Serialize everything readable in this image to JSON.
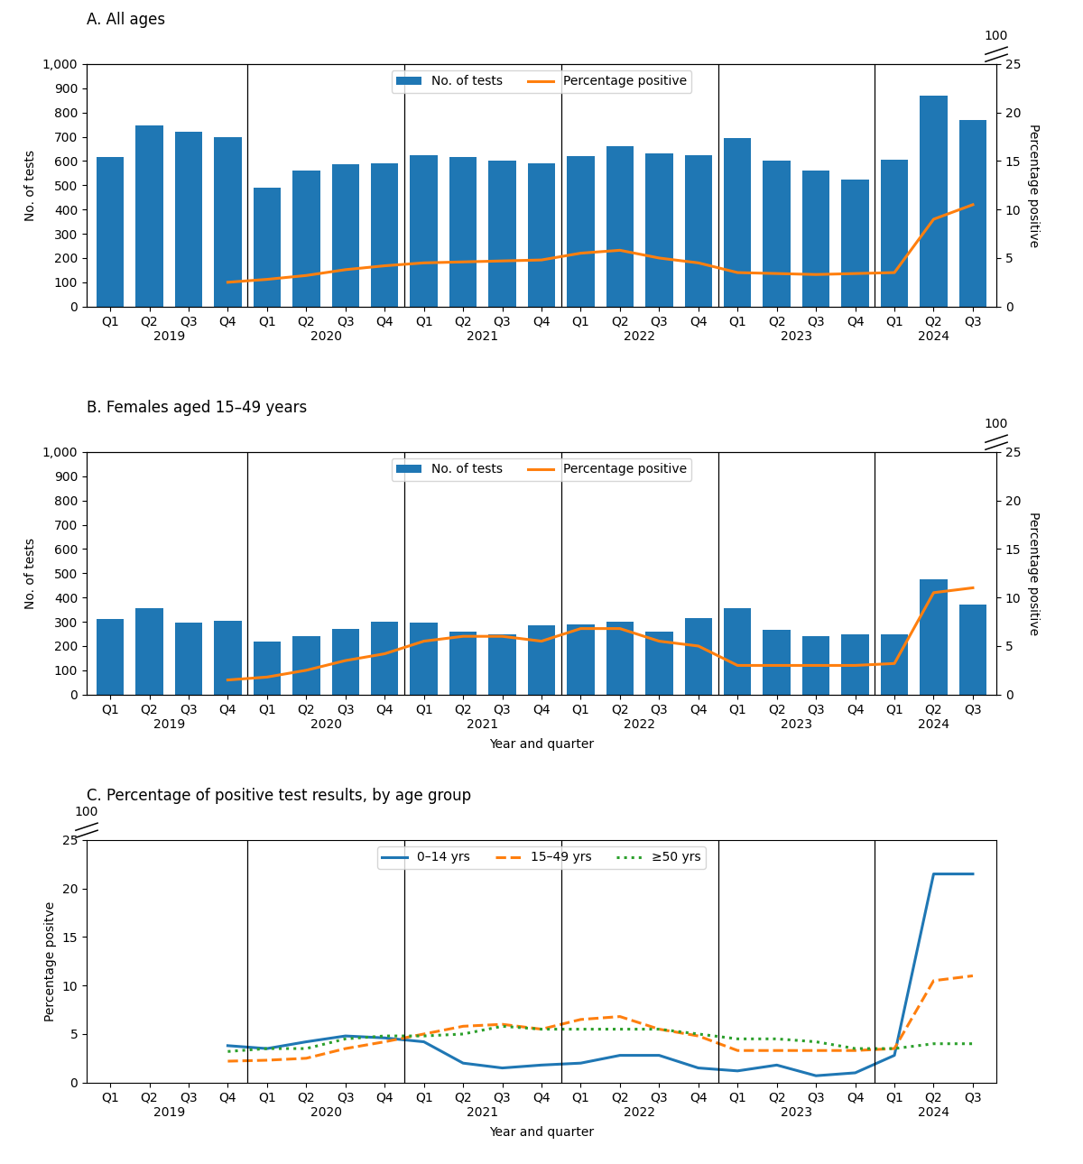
{
  "chart_data": [
    {
      "type": "bar",
      "title": "A. All ages",
      "categories": [
        "Q1",
        "Q2",
        "Q3",
        "Q4",
        "Q1",
        "Q2",
        "Q3",
        "Q4",
        "Q1",
        "Q2",
        "Q3",
        "Q4",
        "Q1",
        "Q2",
        "Q3",
        "Q4",
        "Q1",
        "Q2",
        "Q3",
        "Q4",
        "Q1",
        "Q2",
        "Q3"
      ],
      "category_groups": [
        {
          "label": "2019",
          "count": 4
        },
        {
          "label": "2020",
          "count": 4
        },
        {
          "label": "2021",
          "count": 4
        },
        {
          "label": "2022",
          "count": 4
        },
        {
          "label": "2023",
          "count": 4
        },
        {
          "label": "2024",
          "count": 3
        }
      ],
      "series": [
        {
          "name": "No. of tests",
          "type": "bar",
          "values": [
            615,
            745,
            720,
            700,
            490,
            560,
            585,
            590,
            625,
            615,
            600,
            590,
            620,
            660,
            630,
            625,
            695,
            600,
            560,
            525,
            605,
            870,
            770
          ]
        },
        {
          "name": "Percentage positive",
          "type": "line",
          "axis": "y2",
          "values": [
            null,
            null,
            null,
            2.5,
            2.8,
            3.2,
            3.8,
            4.2,
            4.5,
            4.6,
            4.7,
            4.8,
            5.5,
            5.8,
            5.0,
            4.5,
            3.5,
            3.4,
            3.3,
            3.4,
            3.5,
            9.0,
            10.5
          ]
        }
      ],
      "ylabel": "No. of tests",
      "y2label": "Percentage positive",
      "ylim": [
        0,
        1000
      ],
      "yticks": [
        0,
        100,
        200,
        300,
        400,
        500,
        600,
        700,
        800,
        900,
        {
          "value": 1000,
          "label": "1,000"
        }
      ],
      "y2lim": [
        0,
        25
      ],
      "y2ticks": [
        0,
        5,
        10,
        15,
        20,
        25
      ],
      "y2_break_label": "100",
      "legend": "upper center"
    },
    {
      "type": "bar",
      "title": "B. Females aged 15–49 years",
      "categories": [
        "Q1",
        "Q2",
        "Q3",
        "Q4",
        "Q1",
        "Q2",
        "Q3",
        "Q4",
        "Q1",
        "Q2",
        "Q3",
        "Q4",
        "Q1",
        "Q2",
        "Q3",
        "Q4",
        "Q1",
        "Q2",
        "Q3",
        "Q4",
        "Q1",
        "Q2",
        "Q3"
      ],
      "category_groups": [
        {
          "label": "2019",
          "count": 4
        },
        {
          "label": "2020",
          "count": 4
        },
        {
          "label": "2021",
          "count": 4
        },
        {
          "label": "2022",
          "count": 4
        },
        {
          "label": "2023",
          "count": 4
        },
        {
          "label": "2024",
          "count": 3
        }
      ],
      "series": [
        {
          "name": "No. of tests",
          "type": "bar",
          "values": [
            310,
            355,
            295,
            305,
            220,
            240,
            270,
            300,
            295,
            260,
            250,
            285,
            290,
            300,
            260,
            315,
            355,
            265,
            240,
            250,
            250,
            475,
            370
          ]
        },
        {
          "name": "Percentage positive",
          "type": "line",
          "axis": "y2",
          "values": [
            null,
            null,
            null,
            1.5,
            1.8,
            2.5,
            3.5,
            4.2,
            5.5,
            6.0,
            6.0,
            5.5,
            6.8,
            6.8,
            5.5,
            5.0,
            3.0,
            3.0,
            3.0,
            3.0,
            3.2,
            10.5,
            11.0
          ]
        }
      ],
      "xlabel": "Year and quarter",
      "ylabel": "No. of tests",
      "y2label": "Percentage positive",
      "ylim": [
        0,
        1000
      ],
      "yticks": [
        0,
        100,
        200,
        300,
        400,
        500,
        600,
        700,
        800,
        900,
        {
          "value": 1000,
          "label": "1,000"
        }
      ],
      "y2lim": [
        0,
        25
      ],
      "y2ticks": [
        0,
        5,
        10,
        15,
        20,
        25
      ],
      "y2_break_label": "100",
      "legend": "upper center"
    },
    {
      "type": "line",
      "title": "C. Percentage of positive test results, by age group",
      "categories": [
        "Q1",
        "Q2",
        "Q3",
        "Q4",
        "Q1",
        "Q2",
        "Q3",
        "Q4",
        "Q1",
        "Q2",
        "Q3",
        "Q4",
        "Q1",
        "Q2",
        "Q3",
        "Q4",
        "Q1",
        "Q2",
        "Q3",
        "Q4",
        "Q1",
        "Q2",
        "Q3"
      ],
      "category_groups": [
        {
          "label": "2019",
          "count": 4
        },
        {
          "label": "2020",
          "count": 4
        },
        {
          "label": "2021",
          "count": 4
        },
        {
          "label": "2022",
          "count": 4
        },
        {
          "label": "2023",
          "count": 4
        },
        {
          "label": "2024",
          "count": 3
        }
      ],
      "series": [
        {
          "name": "0–14 yrs",
          "line_style": "solid",
          "values": [
            null,
            null,
            null,
            3.8,
            3.5,
            4.2,
            4.8,
            4.6,
            4.2,
            2.0,
            1.5,
            1.8,
            2.0,
            2.8,
            2.8,
            1.5,
            1.2,
            1.8,
            0.7,
            1.0,
            2.8,
            21.5,
            21.5
          ]
        },
        {
          "name": "15–49 yrs",
          "line_style": "dashed",
          "values": [
            null,
            null,
            null,
            2.2,
            2.3,
            2.5,
            3.5,
            4.2,
            5.0,
            5.8,
            6.0,
            5.5,
            6.5,
            6.8,
            5.5,
            4.8,
            3.3,
            3.3,
            3.3,
            3.3,
            3.5,
            10.5,
            11.0
          ]
        },
        {
          "name": "≥50 yrs",
          "line_style": "dotted",
          "values": [
            null,
            null,
            null,
            3.2,
            3.5,
            3.5,
            4.5,
            4.8,
            4.8,
            5.0,
            5.8,
            5.5,
            5.5,
            5.5,
            5.5,
            5.0,
            4.5,
            4.5,
            4.2,
            3.5,
            3.5,
            4.0,
            4.0
          ]
        }
      ],
      "xlabel": "Year and quarter",
      "ylabel": "Percentage positve",
      "ylim": [
        0,
        25
      ],
      "yticks": [
        0,
        5,
        10,
        15,
        20,
        25
      ],
      "y_break_label": "100",
      "legend": "upper center"
    }
  ]
}
